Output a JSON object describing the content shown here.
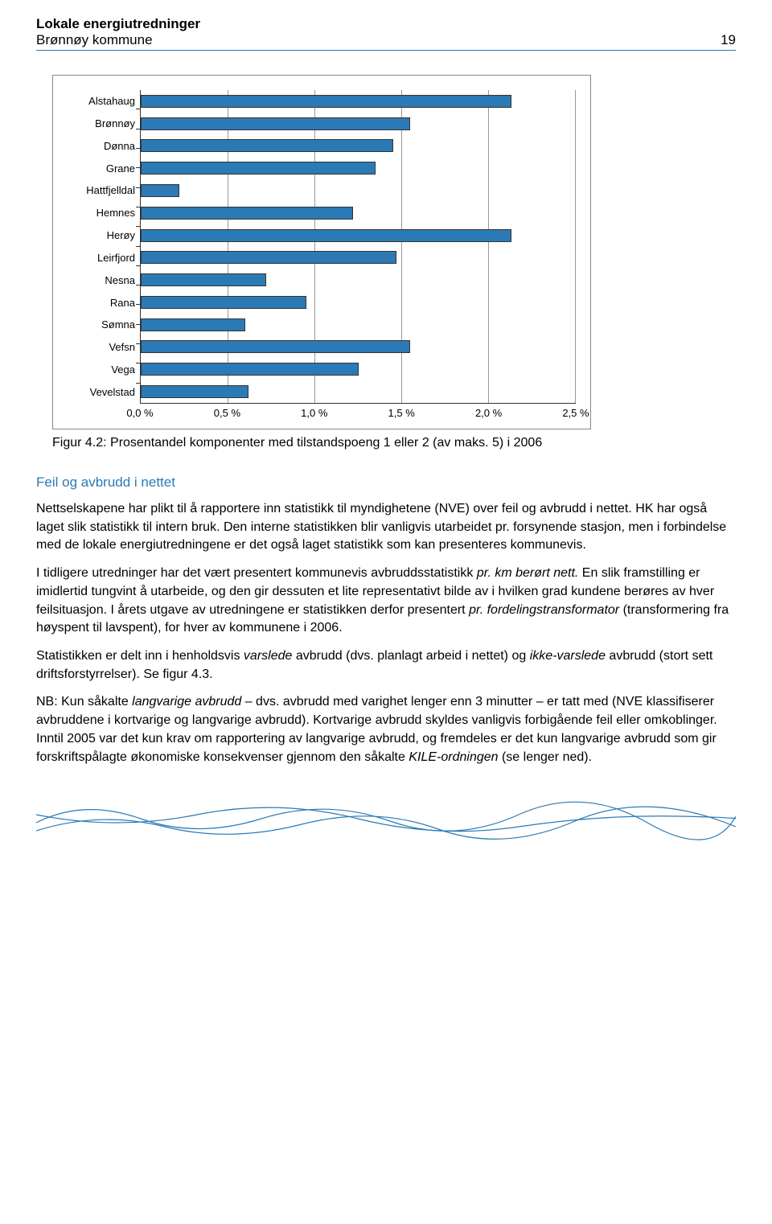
{
  "header": {
    "title": "Lokale energiutredninger",
    "subtitle": "Brønnøy kommune",
    "page_number": "19"
  },
  "chart": {
    "type": "bar",
    "orientation": "horizontal",
    "categories": [
      "Alstahaug",
      "Brønnøy",
      "Dønna",
      "Grane",
      "Hattfjelldal",
      "Hemnes",
      "Herøy",
      "Leirfjord",
      "Nesna",
      "Rana",
      "Sømna",
      "Vefsn",
      "Vega",
      "Vevelstad"
    ],
    "values": [
      2.13,
      1.55,
      1.45,
      1.35,
      0.22,
      1.22,
      2.13,
      1.47,
      0.72,
      0.95,
      0.6,
      1.55,
      1.25,
      0.62
    ],
    "xlim": [
      0.0,
      2.5
    ],
    "xtick_labels": [
      "0,0 %",
      "0,5 %",
      "1,0 %",
      "1,5 %",
      "2,0 %",
      "2,5 %"
    ],
    "xtick_values": [
      0.0,
      0.5,
      1.0,
      1.5,
      2.0,
      2.5
    ],
    "bar_color": "#2b7ab5",
    "bar_border_color": "#333333",
    "background_color": "#ffffff",
    "border_color": "#888888",
    "label_fontsize": 13
  },
  "figure_caption": "Figur 4.2: Prosentandel komponenter med tilstandspoeng 1 eller 2 (av maks. 5) i 2006",
  "section_heading": "Feil og avbrudd i nettet",
  "paragraphs": {
    "p1": "Nettselskapene har plikt til å rapportere inn statistikk til myndighetene (NVE) over feil og avbrudd i nettet. HK har også laget slik statistikk til intern bruk. Den interne statistikken blir vanligvis utarbeidet pr. forsynende stasjon, men i forbindelse med de lokale energi­utredningene er det også laget statistikk som kan presenteres kommunevis.",
    "p2a": "I tidligere utredninger har det vært presentert kommunevis avbruddsstatistikk ",
    "p2_em1": "pr. km berørt nett.",
    "p2b": " En slik framstilling er imidlertid tungvint å utarbeide, og den gir dessuten et lite representativt bilde av i hvilken grad kundene berøres av hver feilsituasjon. I årets utgave av utredningene er statistikken derfor presentert ",
    "p2_em2": "pr. fordelingstransformator",
    "p2c": " (transformering fra høyspent til lavspent), for hver av kommunene i 2006.",
    "p3a": "Statistikken er delt inn i henholdsvis ",
    "p3_em1": "varslede",
    "p3b": " avbrudd (dvs. planlagt arbeid i nettet) og ",
    "p3_em2": "ikke-varslede",
    "p3c": " avbrudd (stort sett driftsforstyrrelser). Se figur 4.3.",
    "p4a": "NB: Kun såkalte ",
    "p4_em1": "langvarige avbrudd",
    "p4b": " – dvs. avbrudd med varighet lenger enn 3 minutter – er tatt med (NVE klassifiserer avbruddene i kortvarige og langvarige avbrudd). Kortvarige avbrudd skyldes vanligvis forbigående feil eller omkoblinger. Inntil 2005 var det kun krav om rapportering av langvarige avbrudd, og fremdeles er det kun langvarige avbrudd som gir forskriftspålagte økonomiske konsekvenser gjennom den såkalte ",
    "p4_em2": "KILE-ordningen",
    "p4c": " (se lenger ned)."
  },
  "wave_colors": {
    "stroke": "#2b7ab5",
    "stroke_width": 1.2
  }
}
